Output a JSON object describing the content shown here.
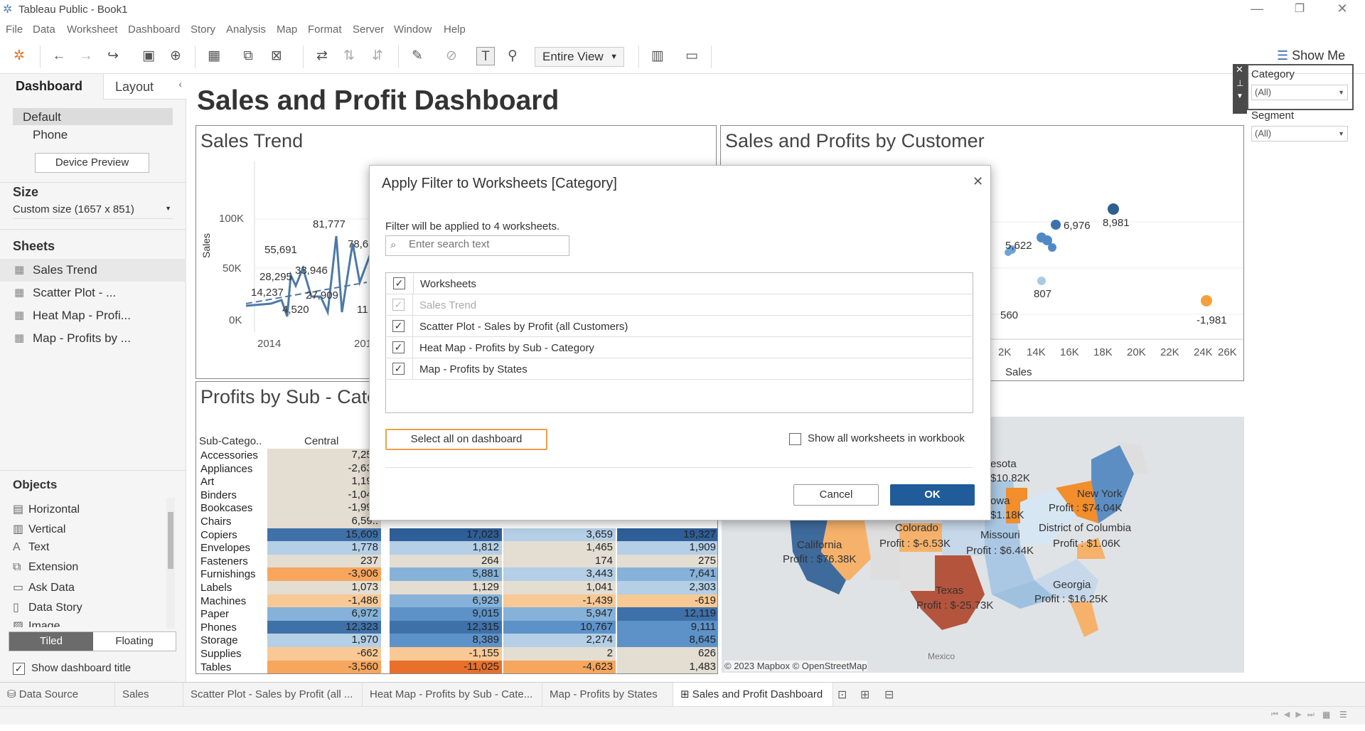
{
  "window": {
    "title": "Tableau Public - Book1"
  },
  "menu": [
    "File",
    "Data",
    "Worksheet",
    "Dashboard",
    "Story",
    "Analysis",
    "Map",
    "Format",
    "Server",
    "Window",
    "Help"
  ],
  "toolbar": {
    "view_select": "Entire View",
    "show_me": "Show Me"
  },
  "left_panel": {
    "tabs": [
      "Dashboard",
      "Layout"
    ],
    "devices": [
      "Default",
      "Phone"
    ],
    "device_preview": "Device Preview",
    "size_heading": "Size",
    "size_value": "Custom size (1657 x 851)",
    "sheets_heading": "Sheets",
    "sheets": [
      "Sales Trend",
      "Scatter Plot - ...",
      "Heat Map - Profi...",
      "Map - Profits by ..."
    ],
    "objects_heading": "Objects",
    "objects": [
      {
        "icon": "horizontal-icon",
        "label": "Horizontal"
      },
      {
        "icon": "vertical-icon",
        "label": "Vertical"
      },
      {
        "icon": "text-icon",
        "label": "Text"
      },
      {
        "icon": "extension-icon",
        "label": "Extension"
      },
      {
        "icon": "ask-data-icon",
        "label": "Ask Data"
      },
      {
        "icon": "data-story-icon",
        "label": "Data Story"
      },
      {
        "icon": "image-icon",
        "label": "Image"
      }
    ],
    "tiled": "Tiled",
    "floating": "Floating",
    "show_title": "Show dashboard title"
  },
  "dashboard": {
    "title": "Sales and Profit Dashboard",
    "sales_trend": {
      "title": "Sales Trend",
      "ylabel": "Sales",
      "yticks": [
        "100K",
        "50K",
        "0K"
      ],
      "xticks": [
        "2014",
        "2015"
      ],
      "labels": [
        "81,777",
        "55,691",
        "78,6..",
        "33,946",
        "28,295",
        "14,237",
        "27,909",
        "4,520",
        "11,9.."
      ]
    },
    "scatter": {
      "title": "Sales and Profits by Customer",
      "xlabel": "Sales",
      "xticks": [
        "2K",
        "14K",
        "16K",
        "18K",
        "20K",
        "22K",
        "24K",
        "26K"
      ],
      "labels": [
        "8,981",
        "6,976",
        "5,622",
        "807",
        "-1,981",
        "560"
      ]
    },
    "heatmap": {
      "title": "Profits by Sub - Cate..",
      "col_header_sub": "Sub-Catego..",
      "col_header_central": "Central",
      "rows": [
        {
          "sub": "Accessories",
          "v": [
            "7,25..",
            "",
            "",
            ""
          ]
        },
        {
          "sub": "Appliances",
          "v": [
            "-2,63..",
            "",
            "",
            ""
          ]
        },
        {
          "sub": "Art",
          "v": [
            "1,19..",
            "",
            "",
            ""
          ]
        },
        {
          "sub": "Binders",
          "v": [
            "-1,04..",
            "",
            "",
            ""
          ]
        },
        {
          "sub": "Bookcases",
          "v": [
            "-1,99..",
            "",
            "",
            ""
          ]
        },
        {
          "sub": "Chairs",
          "v": [
            "6,59..",
            "",
            "",
            ""
          ]
        },
        {
          "sub": "Copiers",
          "v": [
            "15,609",
            "17,023",
            "3,659",
            "19,327"
          ]
        },
        {
          "sub": "Envelopes",
          "v": [
            "1,778",
            "1,812",
            "1,465",
            "1,909"
          ]
        },
        {
          "sub": "Fasteners",
          "v": [
            "237",
            "264",
            "174",
            "275"
          ]
        },
        {
          "sub": "Furnishings",
          "v": [
            "-3,906",
            "5,881",
            "3,443",
            "7,641"
          ]
        },
        {
          "sub": "Labels",
          "v": [
            "1,073",
            "1,129",
            "1,041",
            "2,303"
          ]
        },
        {
          "sub": "Machines",
          "v": [
            "-1,486",
            "6,929",
            "-1,439",
            "-619"
          ]
        },
        {
          "sub": "Paper",
          "v": [
            "6,972",
            "9,015",
            "5,947",
            "12,119"
          ]
        },
        {
          "sub": "Phones",
          "v": [
            "12,323",
            "12,315",
            "10,767",
            "9,111"
          ]
        },
        {
          "sub": "Storage",
          "v": [
            "1,970",
            "8,389",
            "2,274",
            "8,645"
          ]
        },
        {
          "sub": "Supplies",
          "v": [
            "-662",
            "-1,155",
            "2",
            "626"
          ]
        },
        {
          "sub": "Tables",
          "v": [
            "-3,560",
            "-11,025",
            "-4,623",
            "1,483"
          ]
        }
      ]
    },
    "map": {
      "attribution": "© 2023 Mapbox © OpenStreetMap",
      "mexico": "Mexico",
      "labels": [
        "esota",
        "$10.82K",
        "owa",
        "$1.18K",
        "New York",
        "Profit : $74.04K",
        "Colorado",
        "Profit : $-6.53K",
        "Missouri",
        "Profit : $6.44K",
        "District of Columbia",
        "Profit : $1.06K",
        "California",
        "Profit : $76.38K",
        "Texas",
        "Profit : $-25.73K",
        "Georgia",
        "Profit : $16.25K"
      ]
    },
    "filters": [
      {
        "label": "Category",
        "value": "(All)"
      },
      {
        "label": "Segment",
        "value": "(All)"
      }
    ]
  },
  "dialog": {
    "title": "Apply Filter to Worksheets [Category]",
    "info": "Filter will be applied to 4 worksheets.",
    "search_placeholder": "Enter search text",
    "header": "Worksheets",
    "items": [
      {
        "label": "Sales Trend",
        "checked": true,
        "disabled": true
      },
      {
        "label": "Scatter Plot - Sales by Profit (all Customers)",
        "checked": true,
        "disabled": false
      },
      {
        "label": "Heat Map - Profits by Sub - Category",
        "checked": true,
        "disabled": false
      },
      {
        "label": "Map - Profits by States",
        "checked": true,
        "disabled": false
      }
    ],
    "select_all": "Select all on dashboard",
    "show_all": "Show all worksheets in workbook",
    "cancel": "Cancel",
    "ok": "OK"
  },
  "tabs": [
    "Data Source",
    "Sales Trend",
    "Scatter Plot - Sales by Profit (all ...",
    "Heat Map - Profits by Sub - Cate...",
    "Map - Profits by States",
    "Sales and Profit Dashboard"
  ],
  "colors": {
    "accent": "#1f5c99",
    "orange": "#f28e2b",
    "blue_dark": "#2f5f98"
  }
}
